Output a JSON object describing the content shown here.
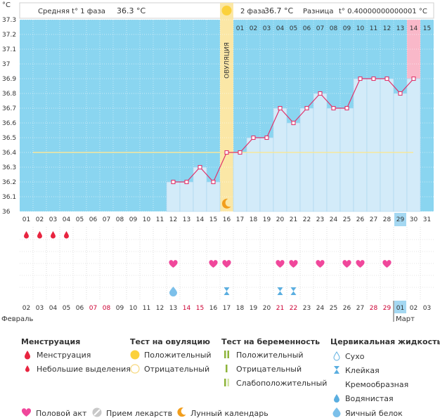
{
  "header": {
    "phase1_label": "Средняя t° 1 фаза",
    "phase1_value": "36.3 °C",
    "phase2_label": "2 фаза",
    "phase2_value": "36.7 °C",
    "diff_label": "Разница",
    "diff_value": "t° 0.40000000000001 °C"
  },
  "unit": "°C",
  "ovulation_label": "ОВУЛЯЦИЯ",
  "colors": {
    "background_blue": "#8ad5f0",
    "bar_fill": "#d3ebf9",
    "line": "#e0336b",
    "ovulation": "#fbe7a6",
    "next_period": "#f9b8c9",
    "coverline": "#f6e79c",
    "heart": "#f0479b",
    "weekend": "#cc0033"
  },
  "chart_data": {
    "type": "line",
    "title": "",
    "xlabel": "",
    "ylabel": "°C",
    "ylim": [
      36.0,
      37.3
    ],
    "y_ticks": [
      "36",
      "36.1",
      "36.2",
      "36.3",
      "36.4",
      "36.5",
      "36.6",
      "36.7",
      "36.8",
      "36.9",
      "37",
      "37.1",
      "37.2",
      "37.3"
    ],
    "cycle_days": [
      "01",
      "02",
      "03",
      "04",
      "05",
      "06",
      "07",
      "08",
      "09",
      "10",
      "11",
      "12",
      "13",
      "14",
      "15",
      "16",
      "17",
      "18",
      "19",
      "20",
      "21",
      "22",
      "23",
      "24",
      "25",
      "26",
      "27",
      "28",
      "29",
      "30",
      "31"
    ],
    "phase2_days": [
      "01",
      "02",
      "03",
      "04",
      "05",
      "06",
      "07",
      "08",
      "09",
      "10",
      "11",
      "12",
      "13",
      "14",
      "15"
    ],
    "dates": [
      "02",
      "03",
      "04",
      "05",
      "06",
      "07",
      "08",
      "09",
      "10",
      "11",
      "12",
      "13",
      "14",
      "15",
      "16",
      "17",
      "18",
      "19",
      "20",
      "21",
      "22",
      "23",
      "24",
      "25",
      "26",
      "27",
      "28",
      "29",
      "01",
      "02",
      "03"
    ],
    "weekend_dates": [
      5,
      6,
      12,
      13,
      19,
      20,
      26,
      27
    ],
    "months": [
      "Февраль",
      "Март"
    ],
    "series": [
      {
        "temps": [
          null,
          null,
          null,
          null,
          null,
          null,
          null,
          null,
          null,
          null,
          null,
          36.2,
          36.2,
          36.3,
          36.2,
          36.4,
          36.4,
          36.5,
          36.5,
          36.7,
          36.6,
          36.7,
          36.8,
          36.7,
          36.7,
          36.9,
          36.9,
          36.9,
          36.8,
          36.9,
          null
        ]
      }
    ],
    "coverline": 36.4,
    "ovulation_day": 16,
    "current_day": 29,
    "next_period_day": 30,
    "menstruation_days": [
      1,
      2,
      3,
      4
    ],
    "intercourse_days": [
      12,
      15,
      16,
      20,
      21,
      23,
      25,
      26,
      28
    ],
    "mucus": [
      {
        "day": 12,
        "type": "egg-white"
      },
      {
        "day": 16,
        "type": "sticky"
      },
      {
        "day": 17,
        "type": "creamy"
      },
      {
        "day": 20,
        "type": "sticky"
      },
      {
        "day": 21,
        "type": "sticky"
      }
    ]
  },
  "legend": {
    "menstruation": {
      "title": "Менструация",
      "items": [
        "Менструация",
        "Небольшие выделения"
      ]
    },
    "ovulation_test": {
      "title": "Тест на овуляцию",
      "items": [
        "Положительный",
        "Отрицательный"
      ]
    },
    "pregnancy_test": {
      "title": "Тест на беременность",
      "items": [
        "Положительный",
        "Отрицательный",
        "Слабоположительный"
      ]
    },
    "cervical": {
      "title": "Цервикальная жидкость",
      "items": [
        "Сухо",
        "Клейкая",
        "Кремообразная",
        "Водянистая",
        "Яичный белок"
      ]
    },
    "bottom": [
      "Половой акт",
      "Прием лекарств",
      "Лунный календарь"
    ]
  }
}
